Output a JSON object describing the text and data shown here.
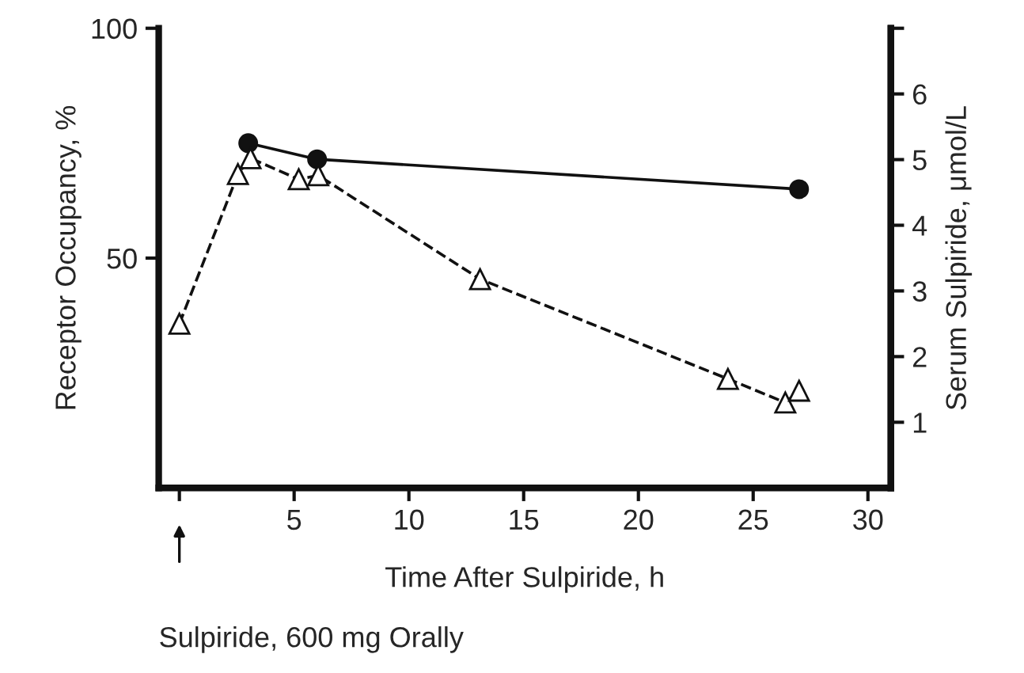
{
  "chart_data": {
    "type": "line",
    "xlabel": "Time After Sulpiride, h",
    "ylabel": "Receptor Occupancy, %",
    "y2label": "Serum Sulpiride, μmol/L",
    "series": [
      {
        "color": "#111111",
        "marker": "circle",
        "line_style": "solid",
        "x": [
          3,
          6,
          27
        ],
        "values": [
          75,
          71.5,
          65
        ]
      },
      {
        "color": "#111111",
        "marker": "triangle",
        "line_style": "dashed",
        "axis": "y2",
        "x": [
          0,
          2.55,
          3.1,
          5.2,
          6.05,
          13.1,
          23.9,
          26.4,
          27
        ],
        "values": [
          2.5,
          4.78,
          5.02,
          4.7,
          4.76,
          3.18,
          1.66,
          1.3,
          1.48
        ]
      }
    ],
    "xlim": [
      -0.9,
      31
    ],
    "xticks": [
      {
        "value": 0,
        "label": null
      },
      5,
      10,
      15,
      20,
      25,
      30
    ],
    "ylim": [
      0,
      100
    ],
    "yticks": [
      50,
      100
    ],
    "y2lim": [
      0,
      7
    ],
    "y2ticks": [
      1,
      2,
      3,
      4,
      5,
      6,
      {
        "value": 7,
        "label": null
      }
    ],
    "grid": false,
    "legend": false,
    "annotations": [
      "Sulpiride, 600 mg Orally"
    ]
  }
}
